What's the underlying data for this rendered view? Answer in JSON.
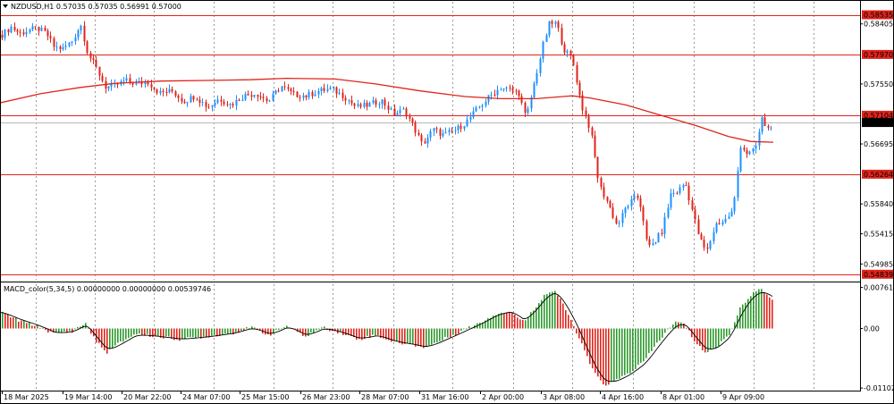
{
  "header": {
    "symbol_text": "NZDUSD,H1  0.57035 0.57035 0.56991 0.57000",
    "indicator_text": "MACD_color(5,34,5) 0.00000000 0.00000000 0.00539746"
  },
  "colors": {
    "bull": "#1e90ff",
    "bear": "#e0241b",
    "ma": "#e0241b",
    "level": "#e0241b",
    "grid": "#9a9a9a",
    "hist_pos": "#2e9a2e",
    "hist_neg": "#e0241b",
    "signal": "#000000"
  },
  "chart_data": [
    {
      "type": "candlestick",
      "symbol": "NZDUSD",
      "timeframe": "H1",
      "y_ticks": [
        "0.58405",
        "0.57550",
        "0.56695",
        "0.55840",
        "0.55415",
        "0.54985"
      ],
      "y_tick_values": [
        0.58405,
        0.5755,
        0.56695,
        0.5584,
        0.55415,
        0.54985
      ],
      "ylim": [
        0.5476,
        0.5872
      ],
      "levels": [
        {
          "label": "0.58535",
          "value": 0.58535
        },
        {
          "label": "0.57970",
          "value": 0.5797
        },
        {
          "label": "0.57104",
          "value": 0.57104
        },
        {
          "label": "0.56264",
          "value": 0.56264
        },
        {
          "label": "0.54839",
          "value": 0.54839
        }
      ],
      "current_price": {
        "label": "0.57000",
        "value": 0.57
      },
      "moving_average": {
        "points": [
          [
            0,
            0.5728
          ],
          [
            45,
            0.5741
          ],
          [
            90,
            0.575
          ],
          [
            130,
            0.5756
          ],
          [
            180,
            0.5759
          ],
          [
            230,
            0.576
          ],
          [
            280,
            0.5761
          ],
          [
            320,
            0.5763
          ],
          [
            375,
            0.5762
          ],
          [
            420,
            0.5755
          ],
          [
            470,
            0.5745
          ],
          [
            520,
            0.5737
          ],
          [
            560,
            0.5734
          ],
          [
            600,
            0.5734
          ],
          [
            640,
            0.5738
          ],
          [
            660,
            0.5735
          ],
          [
            700,
            0.5725
          ],
          [
            740,
            0.571
          ],
          [
            780,
            0.5695
          ],
          [
            815,
            0.568
          ],
          [
            840,
            0.5673
          ],
          [
            865,
            0.5672
          ]
        ]
      },
      "price_path": [
        [
          2,
          0.5825
        ],
        [
          12,
          0.5836
        ],
        [
          22,
          0.5827
        ],
        [
          32,
          0.5832
        ],
        [
          42,
          0.5834
        ],
        [
          52,
          0.5826
        ],
        [
          60,
          0.5808
        ],
        [
          70,
          0.5805
        ],
        [
          80,
          0.5816
        ],
        [
          90,
          0.584
        ],
        [
          98,
          0.5798
        ],
        [
          108,
          0.5776
        ],
        [
          118,
          0.575
        ],
        [
          128,
          0.5752
        ],
        [
          140,
          0.576
        ],
        [
          152,
          0.5755
        ],
        [
          165,
          0.5758
        ],
        [
          178,
          0.5742
        ],
        [
          192,
          0.5745
        ],
        [
          205,
          0.573
        ],
        [
          218,
          0.5738
        ],
        [
          232,
          0.5722
        ],
        [
          245,
          0.5734
        ],
        [
          258,
          0.5725
        ],
        [
          272,
          0.5738
        ],
        [
          286,
          0.5742
        ],
        [
          300,
          0.573
        ],
        [
          314,
          0.5752
        ],
        [
          328,
          0.574
        ],
        [
          342,
          0.5738
        ],
        [
          356,
          0.5745
        ],
        [
          370,
          0.5748
        ],
        [
          384,
          0.5738
        ],
        [
          398,
          0.5722
        ],
        [
          412,
          0.5725
        ],
        [
          426,
          0.5732
        ],
        [
          440,
          0.5712
        ],
        [
          452,
          0.5718
        ],
        [
          462,
          0.5695
        ],
        [
          472,
          0.5668
        ],
        [
          484,
          0.569
        ],
        [
          496,
          0.5682
        ],
        [
          510,
          0.569
        ],
        [
          522,
          0.5702
        ],
        [
          534,
          0.572
        ],
        [
          548,
          0.5738
        ],
        [
          560,
          0.575
        ],
        [
          572,
          0.5746
        ],
        [
          580,
          0.5742
        ],
        [
          588,
          0.5705
        ],
        [
          598,
          0.576
        ],
        [
          608,
          0.5815
        ],
        [
          614,
          0.584
        ],
        [
          622,
          0.5842
        ],
        [
          630,
          0.5805
        ],
        [
          640,
          0.579
        ],
        [
          650,
          0.5725
        ],
        [
          660,
          0.569
        ],
        [
          670,
          0.561
        ],
        [
          680,
          0.5585
        ],
        [
          690,
          0.5552
        ],
        [
          700,
          0.558
        ],
        [
          712,
          0.5595
        ],
        [
          718,
          0.5575
        ],
        [
          724,
          0.552
        ],
        [
          732,
          0.553
        ],
        [
          740,
          0.5545
        ],
        [
          750,
          0.5598
        ],
        [
          758,
          0.5602
        ],
        [
          766,
          0.5615
        ],
        [
          774,
          0.5575
        ],
        [
          782,
          0.5535
        ],
        [
          790,
          0.5515
        ],
        [
          800,
          0.5555
        ],
        [
          810,
          0.556
        ],
        [
          820,
          0.5575
        ],
        [
          828,
          0.5668
        ],
        [
          836,
          0.5655
        ],
        [
          844,
          0.566
        ],
        [
          852,
          0.5705
        ],
        [
          858,
          0.569
        ],
        [
          864,
          0.57
        ]
      ],
      "x_labels": [
        {
          "label": "18 Mar 2025",
          "x": 2
        },
        {
          "label": "19 Mar 14:00",
          "x": 70
        },
        {
          "label": "20 Mar 22:00",
          "x": 136
        },
        {
          "label": "24 Mar 07:00",
          "x": 202
        },
        {
          "label": "25 Mar 15:00",
          "x": 268
        },
        {
          "label": "26 Mar 23:00",
          "x": 336
        },
        {
          "label": "28 Mar 07:00",
          "x": 402
        },
        {
          "label": "31 Mar 16:00",
          "x": 469
        },
        {
          "label": "2 Apr 00:00",
          "x": 537
        },
        {
          "label": "3 Apr 08:00",
          "x": 605
        },
        {
          "label": "4 Apr 16:00",
          "x": 671
        },
        {
          "label": "8 Apr 01:00",
          "x": 739
        },
        {
          "label": "9 Apr 09:00",
          "x": 806
        }
      ]
    },
    {
      "type": "histogram",
      "name": "MACD_color(5,34,5)",
      "y_ticks": [
        "0.0076115",
        "0.00",
        "-0.0110209"
      ],
      "y_tick_values": [
        0.0076115,
        0.0,
        -0.0110209
      ],
      "ylim": [
        -0.0115,
        0.0082
      ],
      "macd_path": [
        [
          0,
          0.003
        ],
        [
          20,
          0.0015
        ],
        [
          40,
          0.0005
        ],
        [
          60,
          -0.001
        ],
        [
          80,
          -0.0005
        ],
        [
          95,
          0.001
        ],
        [
          105,
          -0.002
        ],
        [
          118,
          -0.0045
        ],
        [
          130,
          -0.003
        ],
        [
          150,
          -0.001
        ],
        [
          175,
          -0.0015
        ],
        [
          200,
          -0.002
        ],
        [
          230,
          -0.0015
        ],
        [
          260,
          -0.0008
        ],
        [
          280,
          0.0002
        ],
        [
          300,
          -0.0012
        ],
        [
          320,
          0.0005
        ],
        [
          340,
          -0.0015
        ],
        [
          360,
          0.0002
        ],
        [
          380,
          -0.0008
        ],
        [
          400,
          -0.002
        ],
        [
          420,
          -0.0012
        ],
        [
          440,
          -0.0025
        ],
        [
          460,
          -0.003
        ],
        [
          475,
          -0.0035
        ],
        [
          495,
          -0.002
        ],
        [
          515,
          -0.0005
        ],
        [
          535,
          0.001
        ],
        [
          555,
          0.0028
        ],
        [
          570,
          0.0032
        ],
        [
          585,
          0.0012
        ],
        [
          598,
          0.004
        ],
        [
          610,
          0.0065
        ],
        [
          620,
          0.007
        ],
        [
          632,
          0.0035
        ],
        [
          645,
          -0.001
        ],
        [
          655,
          -0.005
        ],
        [
          665,
          -0.0085
        ],
        [
          675,
          -0.0105
        ],
        [
          690,
          -0.0095
        ],
        [
          705,
          -0.008
        ],
        [
          720,
          -0.006
        ],
        [
          735,
          -0.0025
        ],
        [
          745,
          -0.0005
        ],
        [
          755,
          0.0012
        ],
        [
          765,
          0.0008
        ],
        [
          775,
          -0.002
        ],
        [
          788,
          -0.0045
        ],
        [
          800,
          -0.0035
        ],
        [
          815,
          -0.001
        ],
        [
          828,
          0.004
        ],
        [
          840,
          0.0065
        ],
        [
          850,
          0.0072
        ],
        [
          858,
          0.0062
        ],
        [
          864,
          0.0054
        ]
      ],
      "x_labels": []
    }
  ]
}
